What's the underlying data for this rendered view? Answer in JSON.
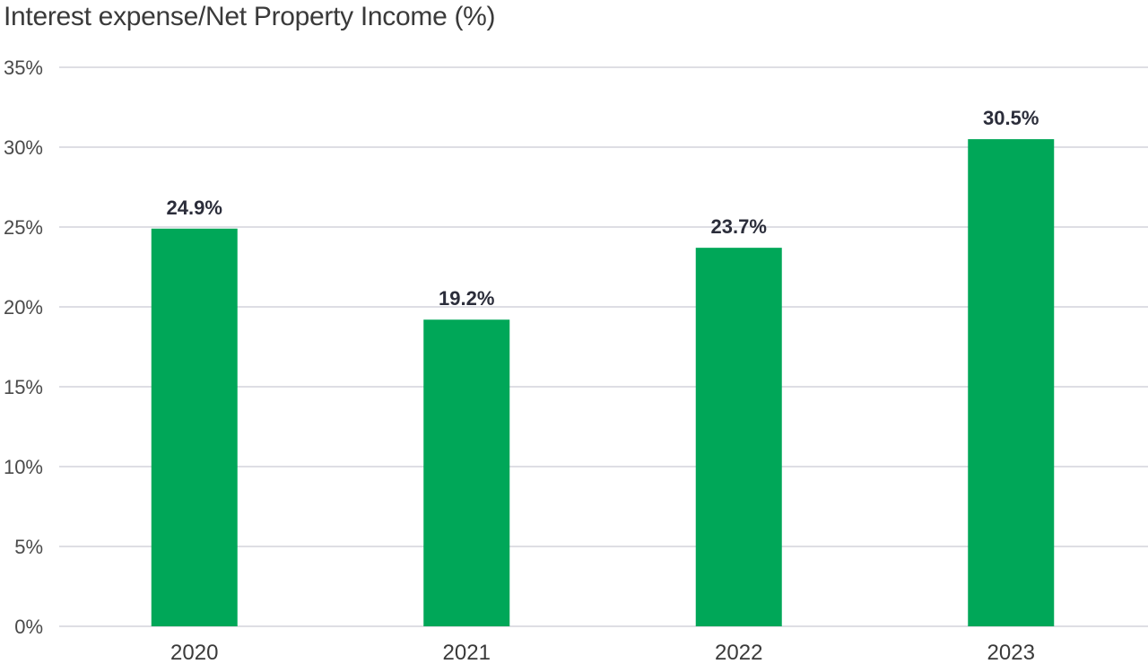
{
  "chart_data": {
    "type": "bar",
    "title": "Interest expense/Net Property Income (%)",
    "xlabel": "",
    "ylabel": "",
    "categories": [
      "2020",
      "2021",
      "2022",
      "2023"
    ],
    "values": [
      24.9,
      19.2,
      23.7,
      30.5
    ],
    "data_labels": [
      "24.9%",
      "19.2%",
      "23.7%",
      "30.5%"
    ],
    "ylim": [
      0,
      35
    ],
    "y_ticks": [
      0,
      5,
      10,
      15,
      20,
      25,
      30,
      35
    ],
    "y_tick_labels": [
      "0%",
      "5%",
      "10%",
      "15%",
      "20%",
      "25%",
      "30%",
      "35%"
    ],
    "grid": true,
    "legend": "none",
    "bar_color": "#00a758",
    "grid_color": "#c9cbd3"
  }
}
